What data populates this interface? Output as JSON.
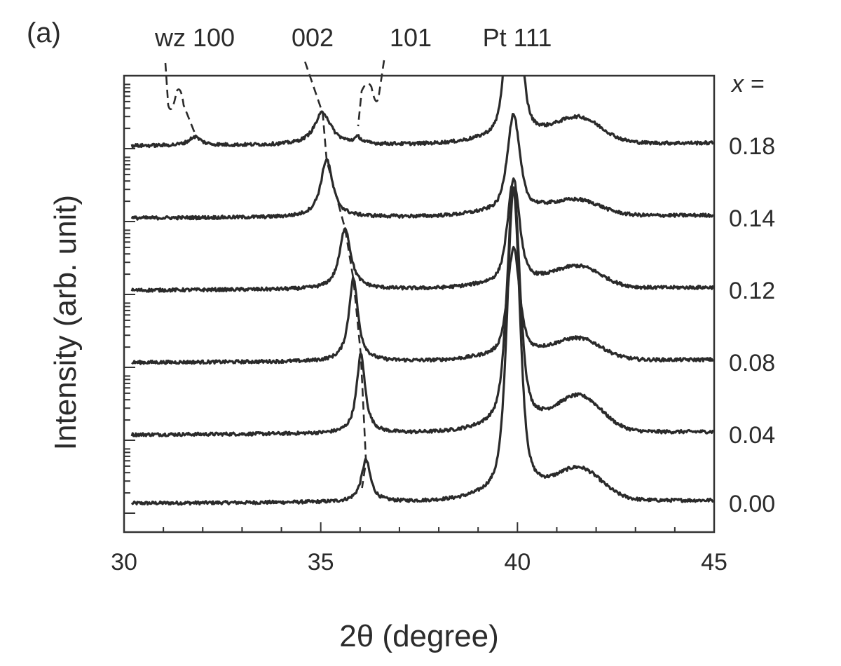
{
  "chart_data": {
    "type": "line",
    "panel_label": "(a)",
    "xlabel": "2θ (degree)",
    "ylabel": "Intensity (arb. unit)",
    "xlim": [
      30,
      45
    ],
    "x_ticks": [
      "30",
      "35",
      "40",
      "45"
    ],
    "series_header": "x =",
    "peak_labels": [
      "wz 100",
      "002",
      "101",
      "Pt 111"
    ],
    "peaks_deg": {
      "wz_100": 31.8,
      "wz_002": [
        36.15,
        36.02,
        35.83,
        35.62,
        35.15,
        35.05
      ],
      "wz_101": 35.95,
      "pt_111": 39.9
    },
    "series": [
      {
        "name": "0.00",
        "baseline": 0.0,
        "zno_002_pos": 36.15,
        "zno_002_height": 0.58,
        "zno_002_width": 0.14,
        "pt_height": 4.2,
        "pt_width": 0.2,
        "shoulder_height": 0.7,
        "wz100_height": 0,
        "wz101_height": 0
      },
      {
        "name": "0.04",
        "baseline": 0.95,
        "zno_002_pos": 36.02,
        "zno_002_height": 1.1,
        "zno_002_width": 0.13,
        "pt_height": 3.3,
        "pt_width": 0.2,
        "shoulder_height": 0.8,
        "wz100_height": 0,
        "wz101_height": 0
      },
      {
        "name": "0.08",
        "baseline": 1.95,
        "zno_002_pos": 35.83,
        "zno_002_height": 1.15,
        "zno_002_width": 0.14,
        "pt_height": 1.45,
        "pt_width": 0.17,
        "shoulder_height": 0.45,
        "wz100_height": 0,
        "wz101_height": 0
      },
      {
        "name": "0.12",
        "baseline": 2.95,
        "zno_002_pos": 35.62,
        "zno_002_height": 0.85,
        "zno_002_width": 0.17,
        "pt_height": 1.4,
        "pt_width": 0.17,
        "shoulder_height": 0.45,
        "wz100_height": 0,
        "wz101_height": 0
      },
      {
        "name": "0.14",
        "baseline": 3.95,
        "zno_002_pos": 35.15,
        "zno_002_height": 0.8,
        "zno_002_width": 0.18,
        "pt_height": 1.3,
        "pt_width": 0.18,
        "shoulder_height": 0.3,
        "wz100_height": 0,
        "wz101_height": 0
      },
      {
        "name": "0.18",
        "baseline": 4.95,
        "zno_002_pos": 35.05,
        "zno_002_height": 0.45,
        "zno_002_width": 0.25,
        "pt_height": 3.5,
        "pt_width": 0.16,
        "shoulder_height": 0.55,
        "wz100_height": 0.12,
        "wz101_height": 0.08
      }
    ]
  }
}
